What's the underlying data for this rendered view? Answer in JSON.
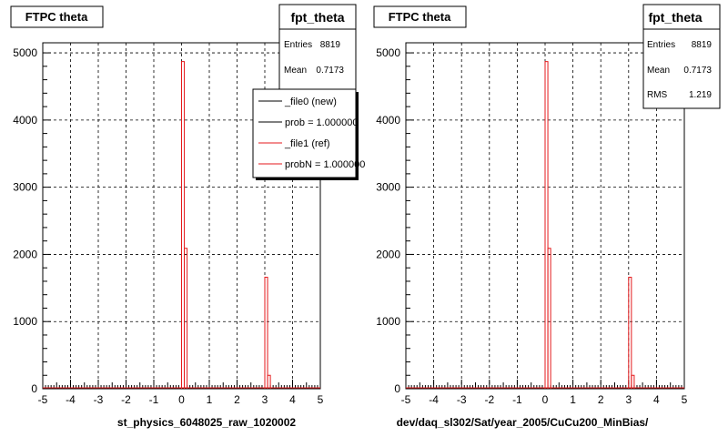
{
  "colors": {
    "ref": "#e41a1c",
    "new": "#000000",
    "grid": "#000000"
  },
  "footer": "",
  "chart_data": [
    {
      "type": "bar",
      "title": "FTPC theta",
      "stats": {
        "name": "fpt_theta",
        "rows": [
          {
            "label": "Entries",
            "value": "8819"
          },
          {
            "label": "Mean",
            "value": "0.7173"
          }
        ]
      },
      "legend": [
        {
          "label": "_file0 (new)",
          "color": "#000000"
        },
        {
          "label": "prob = 1.000000",
          "color": "#000000"
        },
        {
          "label": "_file1 (ref)",
          "color": "#e41a1c"
        },
        {
          "label": "probN = 1.000000",
          "color": "#e41a1c"
        }
      ],
      "xlabel": "st_physics_6048025_raw_1020002",
      "ylabel": "",
      "xlim": [
        -5,
        5
      ],
      "ylim": [
        0,
        5150
      ],
      "xticks": [
        "-5",
        "-4",
        "-3",
        "-2",
        "-1",
        "0",
        "1",
        "2",
        "3",
        "4",
        "5"
      ],
      "yticks": [
        "0",
        "1000",
        "2000",
        "3000",
        "4000",
        "5000"
      ],
      "ytick_values": [
        0,
        1000,
        2000,
        3000,
        4000,
        5000
      ],
      "grid": true,
      "series": [
        {
          "name": "_file1 (ref)",
          "x": [
            0.0,
            0.1,
            0.2,
            3.0,
            3.1,
            3.2
          ],
          "bin_width": 0.1,
          "values": [
            4870,
            2090,
            0,
            1660,
            200,
            0
          ]
        }
      ]
    },
    {
      "type": "bar",
      "title": "FTPC theta",
      "stats": {
        "name": "fpt_theta",
        "rows": [
          {
            "label": "Entries",
            "value": "8819"
          },
          {
            "label": "Mean",
            "value": "0.7173"
          },
          {
            "label": "RMS",
            "value": "1.219"
          }
        ]
      },
      "legend": [],
      "xlabel": "dev/daq_sl302/Sat/year_2005/CuCu200_MinBias/",
      "ylabel": "",
      "xlim": [
        -5,
        5
      ],
      "ylim": [
        0,
        5150
      ],
      "xticks": [
        "-5",
        "-4",
        "-3",
        "-2",
        "-1",
        "0",
        "1",
        "2",
        "3",
        "4",
        "5"
      ],
      "yticks": [
        "0",
        "1000",
        "2000",
        "3000",
        "4000",
        "5000"
      ],
      "ytick_values": [
        0,
        1000,
        2000,
        3000,
        4000,
        5000
      ],
      "grid": true,
      "series": [
        {
          "name": "_file1 (ref)",
          "x": [
            0.0,
            0.1,
            0.2,
            3.0,
            3.1,
            3.2
          ],
          "bin_width": 0.1,
          "values": [
            4870,
            2090,
            0,
            1660,
            200,
            0
          ]
        }
      ]
    }
  ]
}
